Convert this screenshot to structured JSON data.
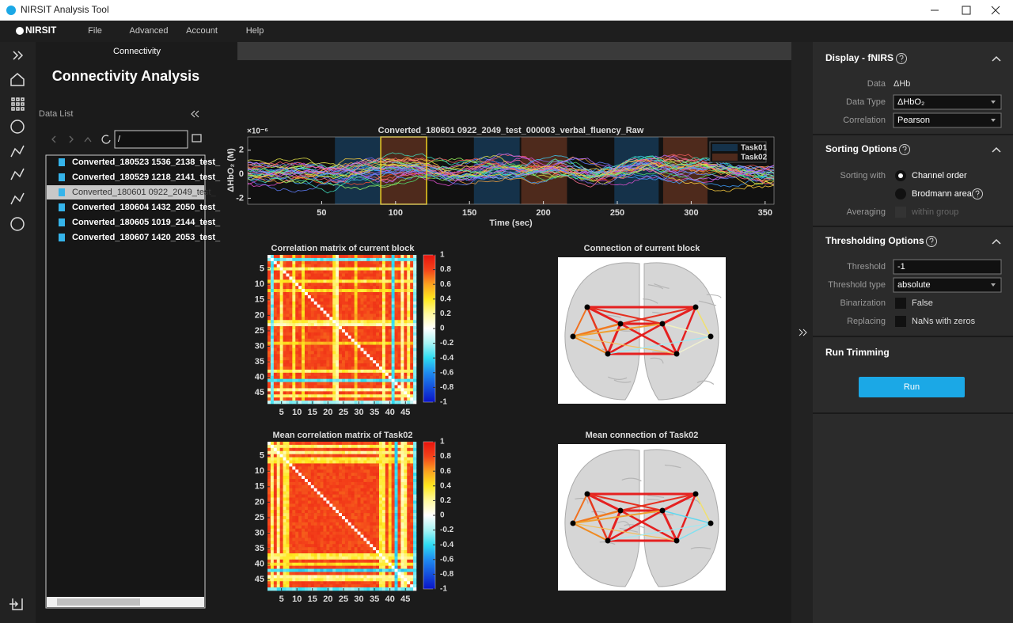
{
  "window": {
    "title": "NIRSIT Analysis Tool"
  },
  "menu": {
    "logo": "NIRSIT",
    "items": [
      "File",
      "Advanced",
      "Account",
      "Help"
    ]
  },
  "tab": "Connectivity",
  "left_panel": {
    "title": "Connectivity Analysis",
    "data_list_label": "Data List",
    "path": "/",
    "files": [
      "Converted_180523 1536_2138_test_",
      "Converted_180529 1218_2141_test_",
      "Converted_180601 0922_2049_test_",
      "Converted_180604 1432_2050_test_",
      "Converted_180605 1019_2144_test_",
      "Converted_180607 1420_2053_test_"
    ],
    "selected": 2
  },
  "chart_data": [
    {
      "type": "line",
      "title": "Converted_180601 0922_2049_test_000003_verbal_fluency_Raw",
      "x_label": "Time (sec)",
      "y_label": "ΔHbO₂ (M)",
      "y_exponent": "×10⁻⁶",
      "xlim": [
        0,
        356
      ],
      "xticks": [
        50,
        100,
        150,
        200,
        250,
        300,
        350
      ],
      "ylim": [
        -2.5,
        3.1
      ],
      "yticks": [
        -2,
        0,
        2
      ],
      "legend": [
        {
          "name": "Task01",
          "color": "#15324a"
        },
        {
          "name": "Task02",
          "color": "#4e2a1c"
        }
      ],
      "blocks": [
        {
          "task": 0,
          "start": 59,
          "end": 90
        },
        {
          "task": 1,
          "start": 90,
          "end": 121
        },
        {
          "task": 0,
          "start": 153,
          "end": 184
        },
        {
          "task": 1,
          "start": 185,
          "end": 216
        },
        {
          "task": 0,
          "start": 248,
          "end": 278
        },
        {
          "task": 1,
          "start": 281,
          "end": 311
        }
      ],
      "highlighted_block": 1
    },
    {
      "type": "heatmap",
      "title": "Correlation matrix of current block",
      "xlim": [
        0.5,
        48.5
      ],
      "xticks": [
        5,
        10,
        15,
        20,
        25,
        30,
        35,
        40,
        45
      ],
      "ylim": [
        0.5,
        48.5
      ],
      "yticks": [
        5,
        10,
        15,
        20,
        25,
        30,
        35,
        40,
        45
      ],
      "colorbar": {
        "lim": [
          -1,
          1
        ],
        "ticks": [
          1,
          0.8,
          0.6,
          0.4,
          0.2,
          0,
          -0.2,
          -0.4,
          -0.6,
          -0.8,
          -1
        ]
      }
    },
    {
      "type": "heatmap",
      "title": "Mean correlation matrix of Task02",
      "xlim": [
        0.5,
        48.5
      ],
      "xticks": [
        5,
        10,
        15,
        20,
        25,
        30,
        35,
        40,
        45
      ],
      "ylim": [
        0.5,
        48.5
      ],
      "yticks": [
        5,
        10,
        15,
        20,
        25,
        30,
        35,
        40,
        45
      ],
      "colorbar": {
        "lim": [
          -1,
          1
        ],
        "ticks": [
          1,
          0.8,
          0.6,
          0.4,
          0.2,
          0,
          -0.2,
          -0.4,
          -0.6,
          -0.8,
          -1
        ]
      }
    },
    {
      "type": "network",
      "title": "Connection of current block"
    },
    {
      "type": "network",
      "title": "Mean connection of Task02"
    }
  ],
  "right_panel": {
    "display": {
      "title": "Display - fNIRS",
      "fields": [
        {
          "label": "Data",
          "value": "ΔHb",
          "control": "text"
        },
        {
          "label": "Data Type",
          "value": "ΔHbO₂",
          "control": "dropdown"
        },
        {
          "label": "Correlation",
          "value": "Pearson",
          "control": "dropdown"
        }
      ]
    },
    "sorting": {
      "title": "Sorting Options",
      "label": "Sorting with",
      "options": [
        "Channel order",
        "Brodmann area"
      ],
      "selected": 0,
      "averaging_label": "Averaging",
      "averaging_option": "within group"
    },
    "thresholding": {
      "title": "Thresholding Options",
      "fields": [
        {
          "label": "Threshold",
          "value": "-1",
          "control": "input"
        },
        {
          "label": "Threshold type",
          "value": "absolute",
          "control": "dropdown"
        },
        {
          "label": "Binarization",
          "value": "False",
          "control": "checkbox"
        },
        {
          "label": "Replacing",
          "value": "NaNs with zeros",
          "control": "checkbox"
        }
      ]
    },
    "run": {
      "title": "Run Trimming",
      "button": "Run"
    }
  }
}
